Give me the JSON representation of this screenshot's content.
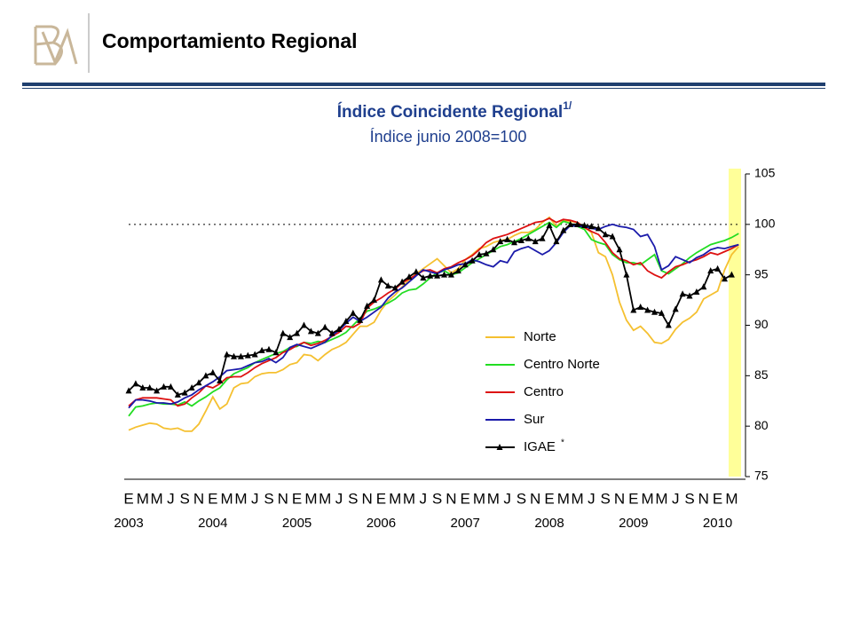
{
  "header": {
    "title": "Comportamiento Regional"
  },
  "chart_data": {
    "type": "line",
    "title": "Índice Coincidente Regional",
    "title_superscript": "1/",
    "subtitle": "Índice junio 2008=100",
    "categories": [
      "E",
      null,
      "M",
      null,
      "M",
      null,
      "J",
      null,
      "S",
      null,
      "N",
      null,
      "E",
      null,
      "M",
      null,
      "M",
      null,
      "J",
      null,
      "S",
      null,
      "N",
      null,
      "E",
      null,
      "M",
      null,
      "M",
      null,
      "J",
      null,
      "S",
      null,
      "N",
      null,
      "E",
      null,
      "M",
      null,
      "M",
      null,
      "J",
      null,
      "S",
      null,
      "N",
      null,
      "E",
      null,
      "M",
      null,
      "M",
      null,
      "J",
      null,
      "S",
      null,
      "N",
      null,
      "E",
      null,
      "M",
      null,
      "M",
      null,
      "J",
      null,
      "S",
      null,
      "N",
      null,
      "E",
      null,
      "M",
      null,
      "M",
      null,
      "J",
      null,
      "S",
      null,
      "N",
      null,
      "E",
      null,
      "M",
      null
    ],
    "years": [
      "2003",
      "2004",
      "2005",
      "2006",
      "2007",
      "2008",
      "2009",
      "2010"
    ],
    "ylim": [
      75,
      105
    ],
    "yticks": [
      75,
      80,
      85,
      90,
      95,
      100,
      105
    ],
    "reference_line": 100,
    "legend_note": "*",
    "series": [
      {
        "name": "Norte",
        "color": "#f5c030",
        "values": [
          79.6,
          79.9,
          80.1,
          80.3,
          80.2,
          79.8,
          79.7,
          79.8,
          79.5,
          79.5,
          80.2,
          81.5,
          82.9,
          81.7,
          82.2,
          83.8,
          84.2,
          84.3,
          84.9,
          85.2,
          85.3,
          85.3,
          85.6,
          86.1,
          86.3,
          87.1,
          87.0,
          86.5,
          87.1,
          87.6,
          87.9,
          88.3,
          89.1,
          89.9,
          89.9,
          90.3,
          91.5,
          92.4,
          93.0,
          93.8,
          94.5,
          95.1,
          95.6,
          96.1,
          96.6,
          95.9,
          95.2,
          95.6,
          96.5,
          97.0,
          97.6,
          97.8,
          98.2,
          98.4,
          98.5,
          98.9,
          99.2,
          99.2,
          99.5,
          100.2,
          100.7,
          99.8,
          100.4,
          100.3,
          100.2,
          99.7,
          99.2,
          97.2,
          96.8,
          95.0,
          92.3,
          90.5,
          89.5,
          89.9,
          89.2,
          88.3,
          88.2,
          88.6,
          89.6,
          90.3,
          90.7,
          91.3,
          92.6,
          93.0,
          93.4,
          95.5,
          97.0,
          97.8
        ]
      },
      {
        "name": "Centro Norte",
        "color": "#22dd22",
        "values": [
          81.0,
          81.9,
          82.0,
          82.2,
          82.3,
          82.2,
          82.2,
          82.1,
          82.4,
          82.0,
          82.5,
          82.9,
          83.4,
          83.8,
          84.6,
          85.2,
          85.5,
          85.8,
          86.3,
          86.6,
          86.9,
          87.2,
          87.4,
          87.8,
          87.9,
          88.3,
          88.2,
          88.4,
          88.3,
          88.6,
          88.9,
          89.3,
          90.0,
          90.7,
          91.4,
          91.6,
          91.9,
          92.2,
          92.6,
          93.2,
          93.5,
          93.6,
          94.1,
          94.7,
          95.2,
          95.4,
          95.0,
          95.2,
          95.7,
          96.2,
          96.6,
          97.0,
          97.4,
          97.8,
          98.0,
          98.3,
          98.6,
          99.0,
          99.4,
          99.8,
          100.2,
          99.7,
          100.3,
          100.1,
          99.8,
          99.5,
          98.5,
          98.2,
          98.0,
          97.0,
          96.5,
          96.2,
          96.2,
          96.0,
          96.5,
          97.0,
          95.4,
          95.1,
          95.6,
          96.1,
          96.7,
          97.2,
          97.6,
          98.0,
          98.2,
          98.4,
          98.7,
          99.1
        ]
      },
      {
        "name": "Centro",
        "color": "#dd1111",
        "values": [
          82.0,
          82.6,
          82.8,
          82.8,
          82.8,
          82.7,
          82.6,
          82.0,
          82.2,
          82.8,
          83.3,
          84.0,
          83.8,
          84.2,
          84.8,
          84.9,
          84.9,
          85.3,
          85.8,
          86.2,
          86.5,
          86.8,
          87.3,
          87.6,
          88.0,
          88.3,
          88.0,
          88.2,
          88.5,
          88.9,
          89.3,
          89.9,
          89.8,
          90.2,
          91.7,
          92.3,
          92.7,
          93.2,
          93.6,
          94.2,
          94.6,
          95.0,
          95.4,
          95.5,
          95.2,
          95.6,
          95.8,
          96.2,
          96.5,
          96.9,
          97.5,
          98.2,
          98.6,
          98.8,
          99.0,
          99.3,
          99.6,
          99.9,
          100.2,
          100.3,
          100.6,
          100.2,
          100.5,
          100.4,
          100.2,
          99.7,
          99.3,
          99.0,
          98.2,
          97.2,
          96.6,
          96.4,
          96.0,
          96.2,
          95.4,
          95.0,
          94.7,
          95.3,
          95.8,
          96.0,
          96.3,
          96.5,
          96.8,
          97.2,
          97.0,
          97.3,
          97.6,
          98.0
        ]
      },
      {
        "name": "Sur",
        "color": "#1a1aaa",
        "values": [
          81.8,
          82.6,
          82.6,
          82.5,
          82.3,
          82.3,
          82.2,
          82.4,
          82.8,
          83.1,
          83.6,
          84.0,
          84.4,
          84.9,
          85.5,
          85.6,
          85.7,
          86.0,
          86.3,
          86.4,
          86.7,
          86.3,
          86.8,
          87.8,
          88.1,
          87.9,
          87.7,
          88.0,
          88.3,
          89.0,
          89.5,
          90.2,
          90.8,
          90.4,
          90.8,
          91.3,
          91.8,
          92.7,
          93.3,
          93.7,
          94.3,
          94.9,
          95.5,
          95.3,
          95.1,
          95.5,
          95.7,
          96.0,
          96.1,
          96.5,
          96.3,
          96.0,
          95.8,
          96.4,
          96.2,
          97.3,
          97.6,
          97.8,
          97.4,
          97.0,
          97.4,
          98.2,
          99.2,
          99.9,
          99.8,
          99.8,
          99.6,
          99.5,
          99.8,
          100.0,
          99.8,
          99.7,
          99.5,
          98.8,
          99.0,
          97.8,
          95.5,
          95.9,
          96.8,
          96.5,
          96.2,
          96.7,
          97.0,
          97.5,
          97.7,
          97.6,
          97.8,
          98.0
        ]
      },
      {
        "name": "IGAE",
        "color": "#000000",
        "marker": "triangle",
        "values": [
          83.5,
          84.2,
          83.8,
          83.8,
          83.5,
          83.9,
          83.9,
          83.1,
          83.3,
          83.8,
          84.3,
          85.0,
          85.3,
          84.5,
          87.1,
          86.9,
          86.9,
          87.0,
          87.1,
          87.5,
          87.6,
          87.3,
          89.2,
          88.8,
          89.2,
          90.0,
          89.4,
          89.2,
          89.8,
          89.2,
          89.6,
          90.4,
          91.2,
          90.5,
          91.9,
          92.5,
          94.5,
          93.9,
          93.7,
          94.3,
          94.8,
          95.3,
          94.7,
          94.9,
          94.9,
          95.0,
          95.0,
          95.4,
          96.0,
          96.4,
          97.0,
          97.1,
          97.5,
          98.3,
          98.5,
          98.2,
          98.4,
          98.6,
          98.3,
          98.6,
          99.9,
          98.3,
          99.4,
          100.0,
          100.0,
          99.9,
          99.8,
          99.6,
          99.0,
          98.8,
          97.5,
          95.0,
          91.5,
          91.8,
          91.5,
          91.3,
          91.2,
          90.0,
          91.6,
          93.1,
          92.9,
          93.3,
          93.8,
          95.4,
          95.6,
          94.6,
          95.0,
          null
        ]
      }
    ]
  }
}
